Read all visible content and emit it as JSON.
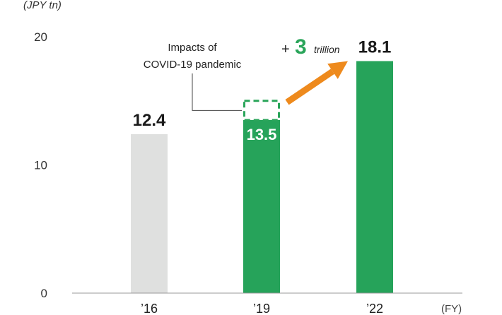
{
  "chart_data": {
    "type": "bar",
    "unit_label": "(JPY tn)",
    "x_unit_label": "(FY)",
    "categories": [
      "’16",
      "’19",
      "’22"
    ],
    "values": [
      12.4,
      13.5,
      18.1
    ],
    "value_labels": [
      "12.4",
      "13.5",
      "18.1"
    ],
    "ylim": [
      0,
      20
    ],
    "yticks": [
      "0",
      "10",
      "20"
    ],
    "ytick_values": [
      0,
      10,
      20
    ],
    "grid": false,
    "colors": {
      "'16": "#dfe0df",
      "'19": "#26a35a",
      "'22": "#26a35a",
      "axis": "#999999",
      "arrow": "#ee8a1d",
      "dashed": "#2aa55a"
    },
    "covid_impact_bar": {
      "category_index": 1,
      "from": 13.5,
      "to": 15.0
    },
    "annotations": {
      "impacts_line1": "Impacts of",
      "impacts_line2": "COVID-19 pandemic",
      "increase_sign": "+",
      "increase_number": "3",
      "increase_word": "trillion"
    }
  }
}
